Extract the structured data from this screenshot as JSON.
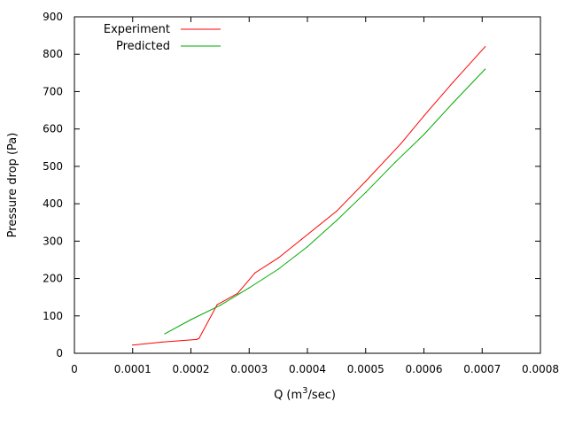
{
  "chart_data": {
    "type": "line",
    "title": "",
    "xlabel_prefix": "Q (m",
    "xlabel_sup": "3",
    "xlabel_suffix": "/sec)",
    "ylabel": "Pressure drop (Pa)",
    "xlim": [
      0,
      0.0008
    ],
    "ylim": [
      0,
      900
    ],
    "xticks": [
      0,
      0.0001,
      0.0002,
      0.0003,
      0.0004,
      0.0005,
      0.0006,
      0.0007,
      0.0008
    ],
    "xtick_labels": [
      "0",
      "0.0001",
      "0.0002",
      "0.0003",
      "0.0004",
      "0.0005",
      "0.0006",
      "0.0007",
      "0.0008"
    ],
    "yticks": [
      0,
      100,
      200,
      300,
      400,
      500,
      600,
      700,
      800,
      900
    ],
    "ytick_labels": [
      "0",
      "100",
      "200",
      "300",
      "400",
      "500",
      "600",
      "700",
      "800",
      "900"
    ],
    "legend_position": "top-left",
    "grid": false,
    "series": [
      {
        "name": "Experiment",
        "color": "#ff0000",
        "x": [
          0.0001,
          0.00015,
          0.00021,
          0.000214,
          0.000245,
          0.00028,
          0.00031,
          0.00035,
          0.00039,
          0.00045,
          0.0005,
          0.00056,
          0.0006,
          0.00065,
          0.000705
        ],
        "y": [
          22,
          30,
          37,
          40,
          130,
          160,
          215,
          255,
          305,
          380,
          460,
          560,
          635,
          725,
          820
        ]
      },
      {
        "name": "Predicted",
        "color": "#00aa00",
        "x": [
          0.000155,
          0.0002,
          0.00025,
          0.0003,
          0.00035,
          0.0004,
          0.00045,
          0.0005,
          0.00055,
          0.0006,
          0.00065,
          0.000705
        ],
        "y": [
          52,
          90,
          128,
          175,
          225,
          285,
          355,
          430,
          510,
          585,
          670,
          760
        ]
      }
    ]
  }
}
